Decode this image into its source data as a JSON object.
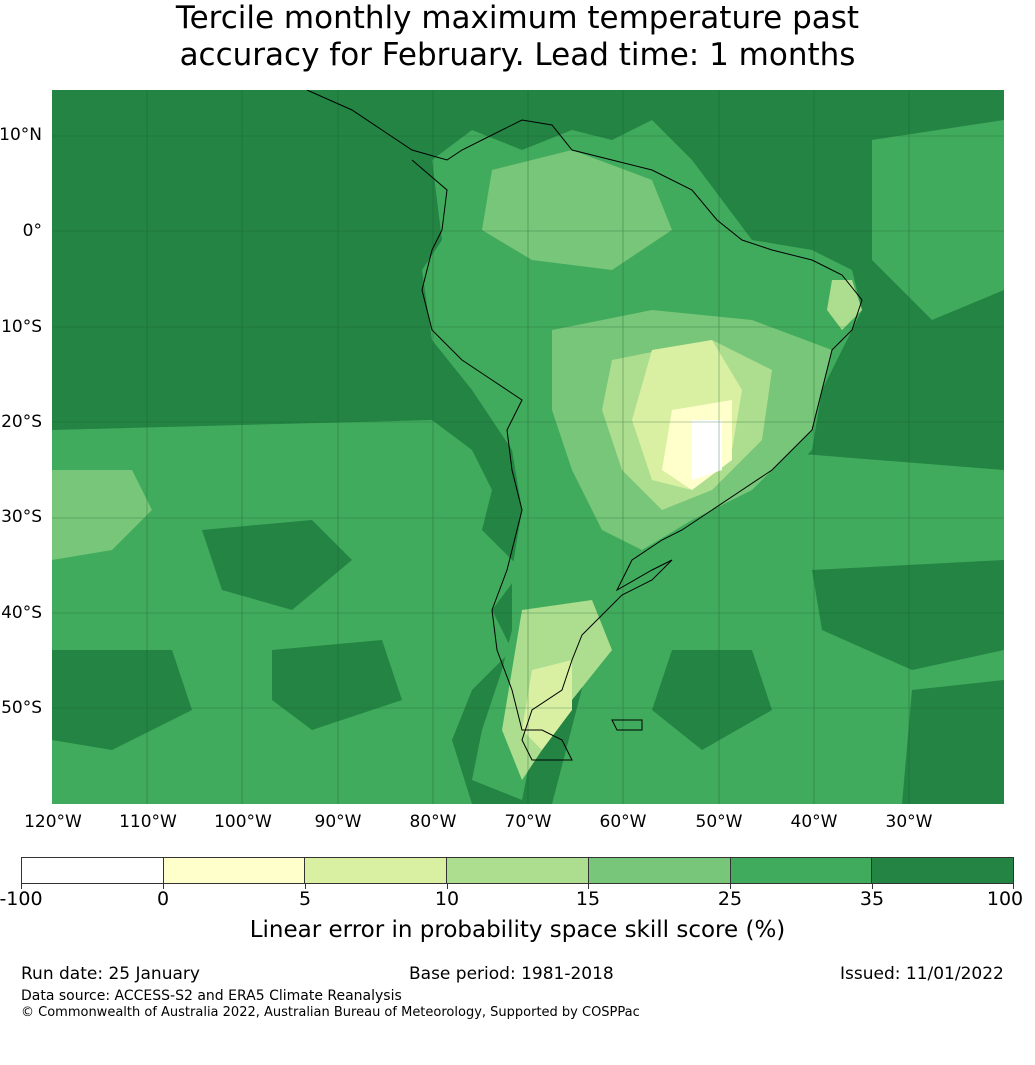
{
  "title_line1": "Tercile monthly maximum temperature past",
  "title_line2": "accuracy for February. Lead time: 1 months",
  "lat_labels": [
    "10°N",
    "0°",
    "10°S",
    "20°S",
    "30°S",
    "40°S",
    "50°S"
  ],
  "lon_labels": [
    "120°W",
    "110°W",
    "100°W",
    "90°W",
    "80°W",
    "70°W",
    "60°W",
    "50°W",
    "40°W",
    "30°W"
  ],
  "colorbar": {
    "colors": [
      "#ffffff",
      "#ffffcc",
      "#d9f0a3",
      "#addd8e",
      "#78c679",
      "#41ab5d",
      "#238443"
    ],
    "ticks": [
      "-100",
      "0",
      "5",
      "10",
      "15",
      "25",
      "35",
      "100"
    ],
    "label": "Linear error in probability space skill score (%)"
  },
  "footer": {
    "run_date": "Run date: 25 January",
    "base_period": "Base period: 1981-2018",
    "issued": "Issued: 11/01/2022",
    "data_source": "Data source: ACCESS-S2 and ERA5 Climate Reanalysis",
    "copyright": "© Commonwealth of Australia 2022, Australian Bureau of Meteorology, Supported by COSPPac"
  }
}
